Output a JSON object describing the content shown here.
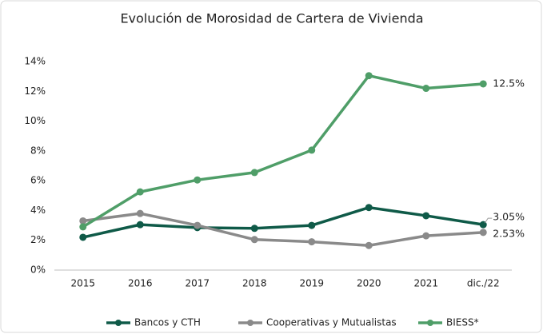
{
  "chart_data": {
    "type": "line",
    "title": "Evolución de Morosidad de Cartera de Vivienda",
    "categories": [
      "2015",
      "2016",
      "2017",
      "2018",
      "2019",
      "2020",
      "2021",
      "dic./22"
    ],
    "series": [
      {
        "name": "Bancos y CTH",
        "color": "#0f5a48",
        "values": [
          2.2,
          3.05,
          2.85,
          2.8,
          3.0,
          4.2,
          3.65,
          3.05
        ],
        "value_labels": [
          null,
          null,
          null,
          null,
          null,
          null,
          null,
          "3.05%"
        ]
      },
      {
        "name": "Cooperativas y Mutualistas",
        "color": "#8a8a8a",
        "values": [
          3.3,
          3.8,
          3.0,
          2.05,
          1.9,
          1.65,
          2.3,
          2.53
        ],
        "value_labels": [
          null,
          null,
          null,
          null,
          null,
          null,
          null,
          "2.53%"
        ]
      },
      {
        "name": "BIESS*",
        "color": "#4f9e68",
        "values": [
          2.9,
          5.25,
          6.05,
          6.55,
          8.05,
          13.05,
          12.2,
          12.5
        ],
        "value_labels": [
          null,
          null,
          null,
          null,
          null,
          null,
          null,
          "12.5%"
        ]
      }
    ],
    "ylim": [
      0,
      14
    ],
    "yticks": [
      {
        "value": 0,
        "label": "0%"
      },
      {
        "value": 2,
        "label": "2%"
      },
      {
        "value": 4,
        "label": "4%"
      },
      {
        "value": 6,
        "label": "6%"
      },
      {
        "value": 8,
        "label": "8%"
      },
      {
        "value": 10,
        "label": "10%"
      },
      {
        "value": 12,
        "label": "12%"
      },
      {
        "value": 14,
        "label": "14%"
      }
    ],
    "legend": "bottom"
  }
}
